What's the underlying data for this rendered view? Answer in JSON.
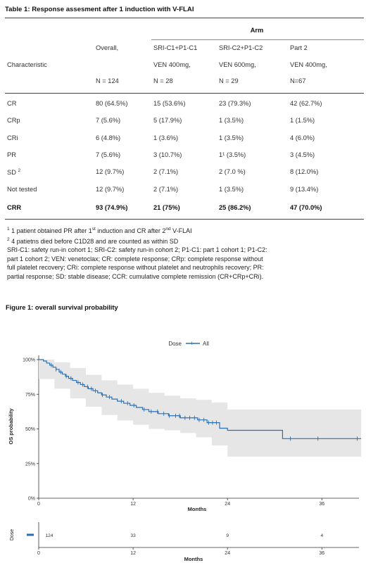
{
  "table": {
    "title": "Table 1: Response assesment after 1 induction with V-FLAI",
    "arm_header": "Arm",
    "row_label_header": "Characteristic",
    "columns": [
      {
        "l1": "Overall,",
        "l2": "",
        "l3": "N = 124"
      },
      {
        "l1": "SRI-C1+P1-C1",
        "l2": "VEN 400mg,",
        "l3": "N = 28"
      },
      {
        "l1": "SRI-C2+P1-C2",
        "l2": "VEN 600mg,",
        "l3": "N = 29"
      },
      {
        "l1": "Part 2",
        "l2": "VEN 400mg,",
        "l3": "N=67"
      }
    ],
    "rows": [
      {
        "label": "CR",
        "sup": "",
        "values": [
          "80 (64.5%)",
          "15 (53.6%)",
          "23 (79.3%)",
          "42 (62.7%)"
        ]
      },
      {
        "label": "CRp",
        "sup": "",
        "values": [
          "7 (5.6%)",
          "5 (17.9%)",
          "1 (3.5%)",
          "1 (1.5%)"
        ]
      },
      {
        "label": "CRi",
        "sup": "",
        "values": [
          "6 (4.8%)",
          "1 (3.6%)",
          "1 (3.5%)",
          "4 (6.0%)"
        ]
      },
      {
        "label": "PR",
        "sup": "",
        "values": [
          "7 (5.6%)",
          "3 (10.7%)",
          "1¹ (3.5%)",
          "3 (4.5%)"
        ]
      },
      {
        "label": "SD",
        "sup": "2",
        "values": [
          "12 (9.7%)",
          "2 (7.1%)",
          "2 (7.0 %)",
          "8 (12.0%)"
        ]
      },
      {
        "label": "Not tested",
        "sup": "",
        "values": [
          "12 (9.7%)",
          "2 (7.1%)",
          "1 (3.5%)",
          "9 (13.4%)"
        ]
      }
    ],
    "total_row": {
      "label": "CRR",
      "values": [
        "93 (74.9%)",
        "21 (75%)",
        "25 (86.2%)",
        "47 (70.0%)"
      ]
    }
  },
  "footnotes": {
    "fn1": {
      "num": "1",
      "a": "1 patient obtained PR after 1",
      "sup1": "st",
      "b": " induction and CR after 2",
      "sup2": "nd",
      "c": " V-FLAI"
    },
    "fn2": {
      "num": "2",
      "text": "4 patietns died before C1D28 and are counted as within SD"
    },
    "abbrev": [
      "SRI-C1: safety run-in cohort 1; SRI-C2: safety run-in cohort 2; P1-C1: part 1 cohort 1; P1-C2:",
      "part 1 cohort 2; VEN: venetoclax; CR: complete response; CRp: complete response without",
      "full platelet recovery; CRi: complete response without platelet and neutrophils recovery; PR:",
      "partial response; SD: stable disease; CCR: cumulative complete remission (CR+CRp+CRi)."
    ]
  },
  "figure": {
    "title": "Figure 1: overall survival probability",
    "legend_title": "Dose",
    "legend_item": "All",
    "risk_label": "Dose"
  },
  "chart_data": {
    "type": "line",
    "subtype": "kaplan-meier",
    "title": "",
    "xlabel": "Months",
    "ylabel": "OS probability",
    "xlim": [
      0,
      40
    ],
    "ylim": [
      0,
      1
    ],
    "x_ticks": [
      0,
      12,
      24,
      36
    ],
    "y_ticks": [
      0,
      0.25,
      0.5,
      0.75,
      1.0
    ],
    "y_tick_labels": [
      "0%",
      "25%",
      "50%",
      "75%",
      "100%"
    ],
    "legend": "top-center",
    "grid": false,
    "colors": {
      "line": "#2a6fb3",
      "ci": "#e6e6e6"
    },
    "series": [
      {
        "name": "All",
        "steps": [
          [
            0,
            1.0
          ],
          [
            0.6,
            0.99
          ],
          [
            1.0,
            0.975
          ],
          [
            1.4,
            0.96
          ],
          [
            1.8,
            0.945
          ],
          [
            2.2,
            0.93
          ],
          [
            2.6,
            0.91
          ],
          [
            3.0,
            0.895
          ],
          [
            3.4,
            0.88
          ],
          [
            3.8,
            0.865
          ],
          [
            4.3,
            0.85
          ],
          [
            4.8,
            0.835
          ],
          [
            5.3,
            0.82
          ],
          [
            5.8,
            0.805
          ],
          [
            6.3,
            0.79
          ],
          [
            6.9,
            0.775
          ],
          [
            7.5,
            0.76
          ],
          [
            8.0,
            0.745
          ],
          [
            8.6,
            0.73
          ],
          [
            9.3,
            0.715
          ],
          [
            10.0,
            0.7
          ],
          [
            10.8,
            0.685
          ],
          [
            11.6,
            0.67
          ],
          [
            12.4,
            0.655
          ],
          [
            13.2,
            0.64
          ],
          [
            14.0,
            0.625
          ],
          [
            15.2,
            0.61
          ],
          [
            16.5,
            0.595
          ],
          [
            18.0,
            0.58
          ],
          [
            20.2,
            0.565
          ],
          [
            21.4,
            0.545
          ],
          [
            23.0,
            0.505
          ],
          [
            24.0,
            0.49
          ],
          [
            31.0,
            0.49
          ],
          [
            31.0,
            0.43
          ],
          [
            41.0,
            0.43
          ]
        ],
        "ci_upper": [
          [
            0,
            1.0
          ],
          [
            2,
            0.98
          ],
          [
            4,
            0.94
          ],
          [
            6,
            0.89
          ],
          [
            8,
            0.85
          ],
          [
            10,
            0.82
          ],
          [
            12,
            0.79
          ],
          [
            14,
            0.76
          ],
          [
            16,
            0.74
          ],
          [
            18,
            0.72
          ],
          [
            20,
            0.71
          ],
          [
            22,
            0.69
          ],
          [
            24,
            0.64
          ],
          [
            31,
            0.64
          ],
          [
            41,
            0.64
          ]
        ],
        "ci_lower": [
          [
            0,
            1.0
          ],
          [
            2,
            0.86
          ],
          [
            4,
            0.79
          ],
          [
            6,
            0.72
          ],
          [
            8,
            0.66
          ],
          [
            10,
            0.6
          ],
          [
            12,
            0.56
          ],
          [
            14,
            0.53
          ],
          [
            16,
            0.5
          ],
          [
            18,
            0.49
          ],
          [
            20,
            0.47
          ],
          [
            22,
            0.44
          ],
          [
            24,
            0.38
          ],
          [
            31,
            0.3
          ],
          [
            41,
            0.3
          ]
        ],
        "censor_times": [
          1.6,
          2.2,
          2.8,
          3.5,
          4.1,
          5.0,
          5.6,
          6.2,
          6.7,
          7.2,
          8.1,
          9.0,
          10.5,
          11.3,
          12.1,
          13.4,
          14.3,
          15.1,
          15.9,
          16.6,
          17.4,
          17.9,
          18.6,
          19.2,
          19.8,
          20.4,
          21.0,
          21.6,
          22.1,
          22.6,
          32.0,
          35.5,
          40.5
        ]
      }
    ],
    "risk_table": {
      "times": [
        0,
        12,
        24,
        36
      ],
      "n_at_risk": [
        "124",
        "33",
        "9",
        "4"
      ]
    }
  }
}
